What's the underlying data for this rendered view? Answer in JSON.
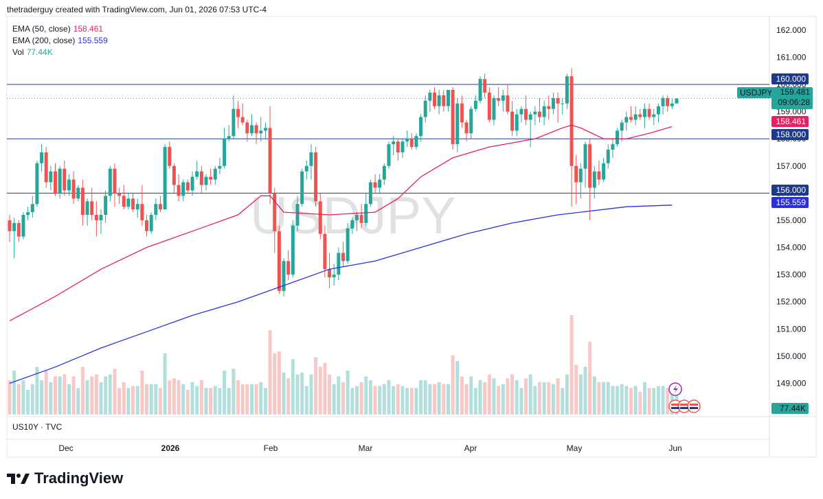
{
  "header": {
    "attribution": "thetraderguy created with TradingView.com, Jun 01, 2026 07:53 UTC-4"
  },
  "legend": {
    "ema50_label": "EMA (50, close)",
    "ema50_value": "158.461",
    "ema200_label": "EMA (200, close)",
    "ema200_value": "155.559",
    "vol_label": "Vol",
    "vol_value": "77.44K"
  },
  "watermark": "USDJPY",
  "symbol_footer": "US10Y · TVC",
  "brand": "TradingView",
  "price_tags": {
    "level_160": "160.000",
    "symbol": "USDJPY",
    "last_price": "159.481",
    "countdown": "09:06:28",
    "ema50": "158.461",
    "level_158": "158.000",
    "level_156": "156.000",
    "ema200": "155.559",
    "volume": "77.44K"
  },
  "colors": {
    "up": "#26a69a",
    "down": "#ef5350",
    "ema50": "#e91e63",
    "ema200": "#2a2ee0",
    "levels": "#1e3a8a",
    "vol_up": "#b2dfdb",
    "vol_down": "#f8c8c7"
  },
  "chart_data": {
    "type": "candlestick",
    "symbol": "USDJPY",
    "y_ticks": [
      "162.000",
      "161.000",
      "160.000",
      "159.000",
      "158.000",
      "157.000",
      "156.000",
      "155.000",
      "154.000",
      "153.000",
      "152.000",
      "151.000",
      "150.000",
      "149.000",
      "148.000"
    ],
    "x_ticks": [
      "Dec",
      "2026",
      "Feb",
      "Mar",
      "Apr",
      "May",
      "Jun"
    ],
    "ylim": [
      147.9,
      162.3
    ],
    "horizontal_levels": [
      160.0,
      158.0,
      156.0
    ],
    "ohlc": [
      [
        155.0,
        155.2,
        154.2,
        154.6
      ],
      [
        154.6,
        155.1,
        153.6,
        154.9
      ],
      [
        154.9,
        155.0,
        154.2,
        154.4
      ],
      [
        154.4,
        155.3,
        154.3,
        155.2
      ],
      [
        155.2,
        155.5,
        155.0,
        155.3
      ],
      [
        155.3,
        155.9,
        155.1,
        155.6
      ],
      [
        155.6,
        157.2,
        155.5,
        157.1
      ],
      [
        157.1,
        157.8,
        156.8,
        157.5
      ],
      [
        157.5,
        157.7,
        156.2,
        156.4
      ],
      [
        156.4,
        157.0,
        156.1,
        156.8
      ],
      [
        156.8,
        157.1,
        155.9,
        156.0
      ],
      [
        156.0,
        157.0,
        155.8,
        156.9
      ],
      [
        156.9,
        157.2,
        155.9,
        156.1
      ],
      [
        156.1,
        156.7,
        155.9,
        156.5
      ],
      [
        156.5,
        156.8,
        155.6,
        155.8
      ],
      [
        155.8,
        156.3,
        155.7,
        156.2
      ],
      [
        156.2,
        156.5,
        154.8,
        155.2
      ],
      [
        155.2,
        155.8,
        154.8,
        155.7
      ],
      [
        155.7,
        156.2,
        155.0,
        155.2
      ],
      [
        155.2,
        155.7,
        154.4,
        155.0
      ],
      [
        155.0,
        155.4,
        154.5,
        155.2
      ],
      [
        155.2,
        156.1,
        154.9,
        155.9
      ],
      [
        155.9,
        157.0,
        155.7,
        156.9
      ],
      [
        156.9,
        157.1,
        155.5,
        156.0
      ],
      [
        156.0,
        156.2,
        155.6,
        155.9
      ],
      [
        155.9,
        156.3,
        155.4,
        155.5
      ],
      [
        155.5,
        156.0,
        155.4,
        155.8
      ],
      [
        155.8,
        156.0,
        155.3,
        155.4
      ],
      [
        155.4,
        155.8,
        155.1,
        155.6
      ],
      [
        155.6,
        156.3,
        154.8,
        155.0
      ],
      [
        155.0,
        155.2,
        154.4,
        154.6
      ],
      [
        154.6,
        155.3,
        154.5,
        155.2
      ],
      [
        155.2,
        155.8,
        155.0,
        155.6
      ],
      [
        155.6,
        155.9,
        155.3,
        155.4
      ],
      [
        155.4,
        157.8,
        155.4,
        157.7
      ],
      [
        157.7,
        157.9,
        156.9,
        157.0
      ],
      [
        157.0,
        157.1,
        156.0,
        156.3
      ],
      [
        156.3,
        156.7,
        155.7,
        155.9
      ],
      [
        155.9,
        156.5,
        155.7,
        156.4
      ],
      [
        156.4,
        156.5,
        156.0,
        156.1
      ],
      [
        156.1,
        156.8,
        155.9,
        156.6
      ],
      [
        156.6,
        157.2,
        156.5,
        156.8
      ],
      [
        156.8,
        157.0,
        156.0,
        156.3
      ],
      [
        156.3,
        156.7,
        156.1,
        156.6
      ],
      [
        156.6,
        156.9,
        156.3,
        156.5
      ],
      [
        156.5,
        157.0,
        156.3,
        156.9
      ],
      [
        156.9,
        157.3,
        156.7,
        157.0
      ],
      [
        157.0,
        158.4,
        156.9,
        158.0
      ],
      [
        158.0,
        158.5,
        157.9,
        158.1
      ],
      [
        158.1,
        159.6,
        158.0,
        159.1
      ],
      [
        159.1,
        159.4,
        158.4,
        158.8
      ],
      [
        158.8,
        159.3,
        158.5,
        158.6
      ],
      [
        158.6,
        158.7,
        157.9,
        158.2
      ],
      [
        158.2,
        158.9,
        158.1,
        158.5
      ],
      [
        158.5,
        158.6,
        157.8,
        158.2
      ],
      [
        158.2,
        158.8,
        157.9,
        158.3
      ],
      [
        158.3,
        158.6,
        158.0,
        158.4
      ],
      [
        158.4,
        159.2,
        155.6,
        156.0
      ],
      [
        156.0,
        156.2,
        153.8,
        154.6
      ],
      [
        154.6,
        154.8,
        152.3,
        152.4
      ],
      [
        152.4,
        153.6,
        152.2,
        153.5
      ],
      [
        153.5,
        153.9,
        152.8,
        153.0
      ],
      [
        153.0,
        155.0,
        152.9,
        154.8
      ],
      [
        154.8,
        155.9,
        154.6,
        155.6
      ],
      [
        155.6,
        156.9,
        155.5,
        156.8
      ],
      [
        156.8,
        157.2,
        156.5,
        157.0
      ],
      [
        157.0,
        157.8,
        156.5,
        157.5
      ],
      [
        157.5,
        157.7,
        155.5,
        155.7
      ],
      [
        155.7,
        156.0,
        154.3,
        154.5
      ],
      [
        154.5,
        154.8,
        152.9,
        153.2
      ],
      [
        153.2,
        153.8,
        152.5,
        152.9
      ],
      [
        152.9,
        153.4,
        152.6,
        153.0
      ],
      [
        153.0,
        154.0,
        152.8,
        153.8
      ],
      [
        153.8,
        154.2,
        153.3,
        153.5
      ],
      [
        153.5,
        154.9,
        153.4,
        154.7
      ],
      [
        154.7,
        155.1,
        154.5,
        155.0
      ],
      [
        155.0,
        155.3,
        154.6,
        155.2
      ],
      [
        155.2,
        155.6,
        154.7,
        154.9
      ],
      [
        154.9,
        156.0,
        154.8,
        155.6
      ],
      [
        155.6,
        156.5,
        155.5,
        156.4
      ],
      [
        156.4,
        156.7,
        156.0,
        156.2
      ],
      [
        156.2,
        156.7,
        156.0,
        156.5
      ],
      [
        156.5,
        157.1,
        156.3,
        157.0
      ],
      [
        157.0,
        157.9,
        156.9,
        157.8
      ],
      [
        157.8,
        158.1,
        157.4,
        157.9
      ],
      [
        157.9,
        158.0,
        157.2,
        157.5
      ],
      [
        157.5,
        158.0,
        157.3,
        157.9
      ],
      [
        157.9,
        158.3,
        157.7,
        158.0
      ],
      [
        158.0,
        158.2,
        157.6,
        157.7
      ],
      [
        157.7,
        158.2,
        157.6,
        158.1
      ],
      [
        158.1,
        158.9,
        157.9,
        158.8
      ],
      [
        158.8,
        159.6,
        158.6,
        159.4
      ],
      [
        159.4,
        159.8,
        159.0,
        159.7
      ],
      [
        159.7,
        159.9,
        159.1,
        159.2
      ],
      [
        159.2,
        159.8,
        158.9,
        159.6
      ],
      [
        159.6,
        159.8,
        159.0,
        159.2
      ],
      [
        159.2,
        159.8,
        159.0,
        159.8
      ],
      [
        159.8,
        159.9,
        157.6,
        157.8
      ],
      [
        157.8,
        159.5,
        157.5,
        159.3
      ],
      [
        159.3,
        159.6,
        158.4,
        158.6
      ],
      [
        158.6,
        158.7,
        157.9,
        158.2
      ],
      [
        158.2,
        159.2,
        158.0,
        159.1
      ],
      [
        159.1,
        159.6,
        159.0,
        159.4
      ],
      [
        159.4,
        160.3,
        159.3,
        160.2
      ],
      [
        160.2,
        160.4,
        159.5,
        159.7
      ],
      [
        159.7,
        159.9,
        158.6,
        158.7
      ],
      [
        158.7,
        159.6,
        158.5,
        159.5
      ],
      [
        159.5,
        159.9,
        159.2,
        159.4
      ],
      [
        159.4,
        159.8,
        159.0,
        159.6
      ],
      [
        159.6,
        160.0,
        158.9,
        159.0
      ],
      [
        159.0,
        159.4,
        158.1,
        158.3
      ],
      [
        158.3,
        159.1,
        158.1,
        158.9
      ],
      [
        158.9,
        159.2,
        158.6,
        159.1
      ],
      [
        159.1,
        159.6,
        158.5,
        158.7
      ],
      [
        158.7,
        159.0,
        157.7,
        158.9
      ],
      [
        158.9,
        159.2,
        158.5,
        159.0
      ],
      [
        159.0,
        159.5,
        158.6,
        158.8
      ],
      [
        158.8,
        159.4,
        158.5,
        159.2
      ],
      [
        159.2,
        159.6,
        158.7,
        159.1
      ],
      [
        159.1,
        159.7,
        158.9,
        159.5
      ],
      [
        159.5,
        159.7,
        158.6,
        159.3
      ],
      [
        159.3,
        159.5,
        158.9,
        159.3
      ],
      [
        159.3,
        160.4,
        159.1,
        160.3
      ],
      [
        160.3,
        160.6,
        155.5,
        157.0
      ],
      [
        157.0,
        157.4,
        155.6,
        156.4
      ],
      [
        156.4,
        157.1,
        155.8,
        156.9
      ],
      [
        156.9,
        157.9,
        156.2,
        157.8
      ],
      [
        157.8,
        158.0,
        155.0,
        156.2
      ],
      [
        156.2,
        157.0,
        155.8,
        156.8
      ],
      [
        156.8,
        157.2,
        156.3,
        156.5
      ],
      [
        156.5,
        157.3,
        156.4,
        157.1
      ],
      [
        157.1,
        157.8,
        156.9,
        157.6
      ],
      [
        157.6,
        158.0,
        157.3,
        157.8
      ],
      [
        157.8,
        158.4,
        157.7,
        158.3
      ],
      [
        158.3,
        158.7,
        157.9,
        158.6
      ],
      [
        158.6,
        159.0,
        158.3,
        158.8
      ],
      [
        158.8,
        159.2,
        158.6,
        158.7
      ],
      [
        158.7,
        159.2,
        158.5,
        158.9
      ],
      [
        158.9,
        159.1,
        158.7,
        158.8
      ],
      [
        158.8,
        159.3,
        158.4,
        159.1
      ],
      [
        159.1,
        159.3,
        158.7,
        158.8
      ],
      [
        158.8,
        159.1,
        158.5,
        158.9
      ],
      [
        158.9,
        159.3,
        158.6,
        159.2
      ],
      [
        159.2,
        159.6,
        158.9,
        159.5
      ],
      [
        159.5,
        159.6,
        159.0,
        159.2
      ],
      [
        159.2,
        159.5,
        159.1,
        159.3
      ],
      [
        159.3,
        159.5,
        159.3,
        159.48
      ]
    ],
    "ema50": [
      [
        0,
        151.3
      ],
      [
        10,
        152.2
      ],
      [
        20,
        153.2
      ],
      [
        30,
        154.0
      ],
      [
        40,
        154.6
      ],
      [
        50,
        155.2
      ],
      [
        55,
        155.9
      ],
      [
        57,
        155.9
      ],
      [
        60,
        155.3
      ],
      [
        70,
        155.2
      ],
      [
        80,
        155.3
      ],
      [
        85,
        155.8
      ],
      [
        90,
        156.6
      ],
      [
        97,
        157.3
      ],
      [
        105,
        157.7
      ],
      [
        115,
        158.0
      ],
      [
        121,
        158.4
      ],
      [
        123,
        158.5
      ],
      [
        125,
        158.4
      ],
      [
        130,
        158.0
      ],
      [
        135,
        158.0
      ],
      [
        140,
        158.2
      ],
      [
        145,
        158.45
      ]
    ],
    "ema200": [
      [
        0,
        149.0
      ],
      [
        10,
        149.6
      ],
      [
        20,
        150.3
      ],
      [
        30,
        150.9
      ],
      [
        40,
        151.5
      ],
      [
        50,
        152.0
      ],
      [
        60,
        152.6
      ],
      [
        70,
        153.2
      ],
      [
        80,
        153.5
      ],
      [
        90,
        154.0
      ],
      [
        100,
        154.5
      ],
      [
        110,
        154.9
      ],
      [
        120,
        155.2
      ],
      [
        125,
        155.3
      ],
      [
        135,
        155.5
      ],
      [
        145,
        155.56
      ]
    ],
    "volume_note": "Volume bars shown as histogram, last value 77.44K"
  }
}
